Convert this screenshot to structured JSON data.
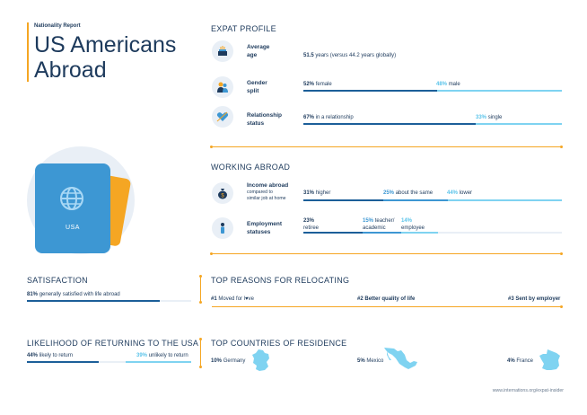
{
  "header": {
    "report_label": "Nationality Report",
    "title_line1": "US Americans",
    "title_line2": "Abroad"
  },
  "passport": {
    "label": "USA"
  },
  "expat_profile": {
    "heading": "EXPAT PROFILE",
    "age": {
      "label_line1": "Average",
      "label_line2": "age",
      "value": "51.5",
      "text": "years (versus 44.2 years globally)",
      "icon": "birthday-cake-icon"
    },
    "gender": {
      "label_line1": "Gender",
      "label_line2": "split",
      "female_pct": "52%",
      "female_text": "female",
      "male_pct": "48%",
      "male_text": "male",
      "female_share": 0.52,
      "icon": "people-icon"
    },
    "relationship": {
      "label_line1": "Relationship",
      "label_line2": "status",
      "in_pct": "67%",
      "in_text": "in a relationship",
      "single_pct": "33%",
      "single_text": "single",
      "in_share": 0.67,
      "icon": "heart-icon"
    }
  },
  "working_abroad": {
    "heading": "WORKING ABROAD",
    "income": {
      "label": "Income abroad",
      "sub_line1": "compared to",
      "sub_line2": "similar job at home",
      "higher_pct": "31%",
      "higher_text": "higher",
      "same_pct": "25%",
      "same_text": "about the same",
      "lower_pct": "44%",
      "lower_text": "lower",
      "icon": "money-bag-icon"
    },
    "employment": {
      "label_line1": "Employment",
      "label_line2": "statuses",
      "retiree_pct": "23%",
      "retiree_text": "retiree",
      "teacher_pct": "15%",
      "teacher_text_line1": "teacher/",
      "teacher_text_line2": "academic",
      "employee_pct": "14%",
      "employee_text": "employee",
      "icon": "person-icon"
    }
  },
  "satisfaction": {
    "heading": "SATISFACTION",
    "pct": "81%",
    "text": "generally satisfied with life abroad",
    "share": 0.81
  },
  "top_reasons": {
    "heading": "TOP REASONS FOR RELOCATING",
    "reasons": [
      {
        "rank": "#1",
        "text_before": "Moved for l",
        "text_after": "ve"
      },
      {
        "rank": "#2",
        "text": "Better quality of life"
      },
      {
        "rank": "#3",
        "text": "Sent by employer"
      }
    ]
  },
  "return": {
    "heading": "LIKELIHOOD OF RETURNING TO THE USA",
    "likely_pct": "44%",
    "likely_text": "likely to return",
    "unlikely_pct": "39%",
    "unlikely_text": "unlikely to return"
  },
  "top_countries": {
    "heading": "TOP COUNTRIES OF RESIDENCE",
    "countries": [
      {
        "pct": "10%",
        "name": "Germany"
      },
      {
        "pct": "5%",
        "name": "Mexico"
      },
      {
        "pct": "4%",
        "name": "France"
      }
    ]
  },
  "footer": {
    "url": "www.internations.org/expat-insider"
  },
  "colors": {
    "navy": "#1d3a5c",
    "orange": "#f5a623",
    "blue": "#3d97d3",
    "dark_blue": "#1c5f99",
    "light_blue": "#7fd3f1"
  }
}
